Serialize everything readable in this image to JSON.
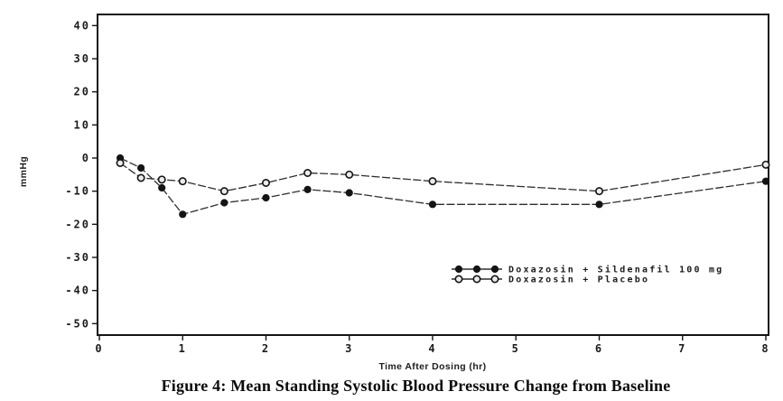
{
  "figure": {
    "caption": "Figure 4: Mean Standing Systolic Blood Pressure Change from Baseline"
  },
  "chart_data": {
    "type": "line",
    "title": "",
    "xlabel": "Time After Dosing (hr)",
    "ylabel": "mmHg",
    "xlim": [
      0,
      8
    ],
    "ylim": [
      -50,
      40
    ],
    "x_ticks": [
      "0",
      "1",
      "2",
      "3",
      "4",
      "5",
      "6",
      "7",
      "8"
    ],
    "y_ticks": [
      "40",
      "30",
      "20",
      "10",
      "0",
      "-10",
      "-20",
      "-30",
      "-40",
      "-50"
    ],
    "grid": false,
    "legend_position": "inside-lower-right",
    "x": [
      0.25,
      0.5,
      0.75,
      1,
      1.5,
      2,
      2.5,
      3,
      4,
      6,
      8
    ],
    "series": [
      {
        "name": "Doxazosin + Sildenafil 100 mg",
        "marker": "filled-circle",
        "values": [
          0,
          -3,
          -9,
          -17,
          -13.5,
          -12,
          -9.5,
          -10.5,
          -14,
          -14,
          -7
        ]
      },
      {
        "name": "Doxazosin + Placebo",
        "marker": "open-circle",
        "values": [
          -1.5,
          -6,
          -6.5,
          -7,
          -10,
          -7.5,
          -4.5,
          -5,
          -7,
          -10,
          -2
        ]
      }
    ],
    "colors": {
      "line": "#2e2e2e",
      "filled_marker": "#141414",
      "open_marker_fill": "#ececec",
      "frame": "#141414",
      "text": "#1c1c1c"
    }
  }
}
